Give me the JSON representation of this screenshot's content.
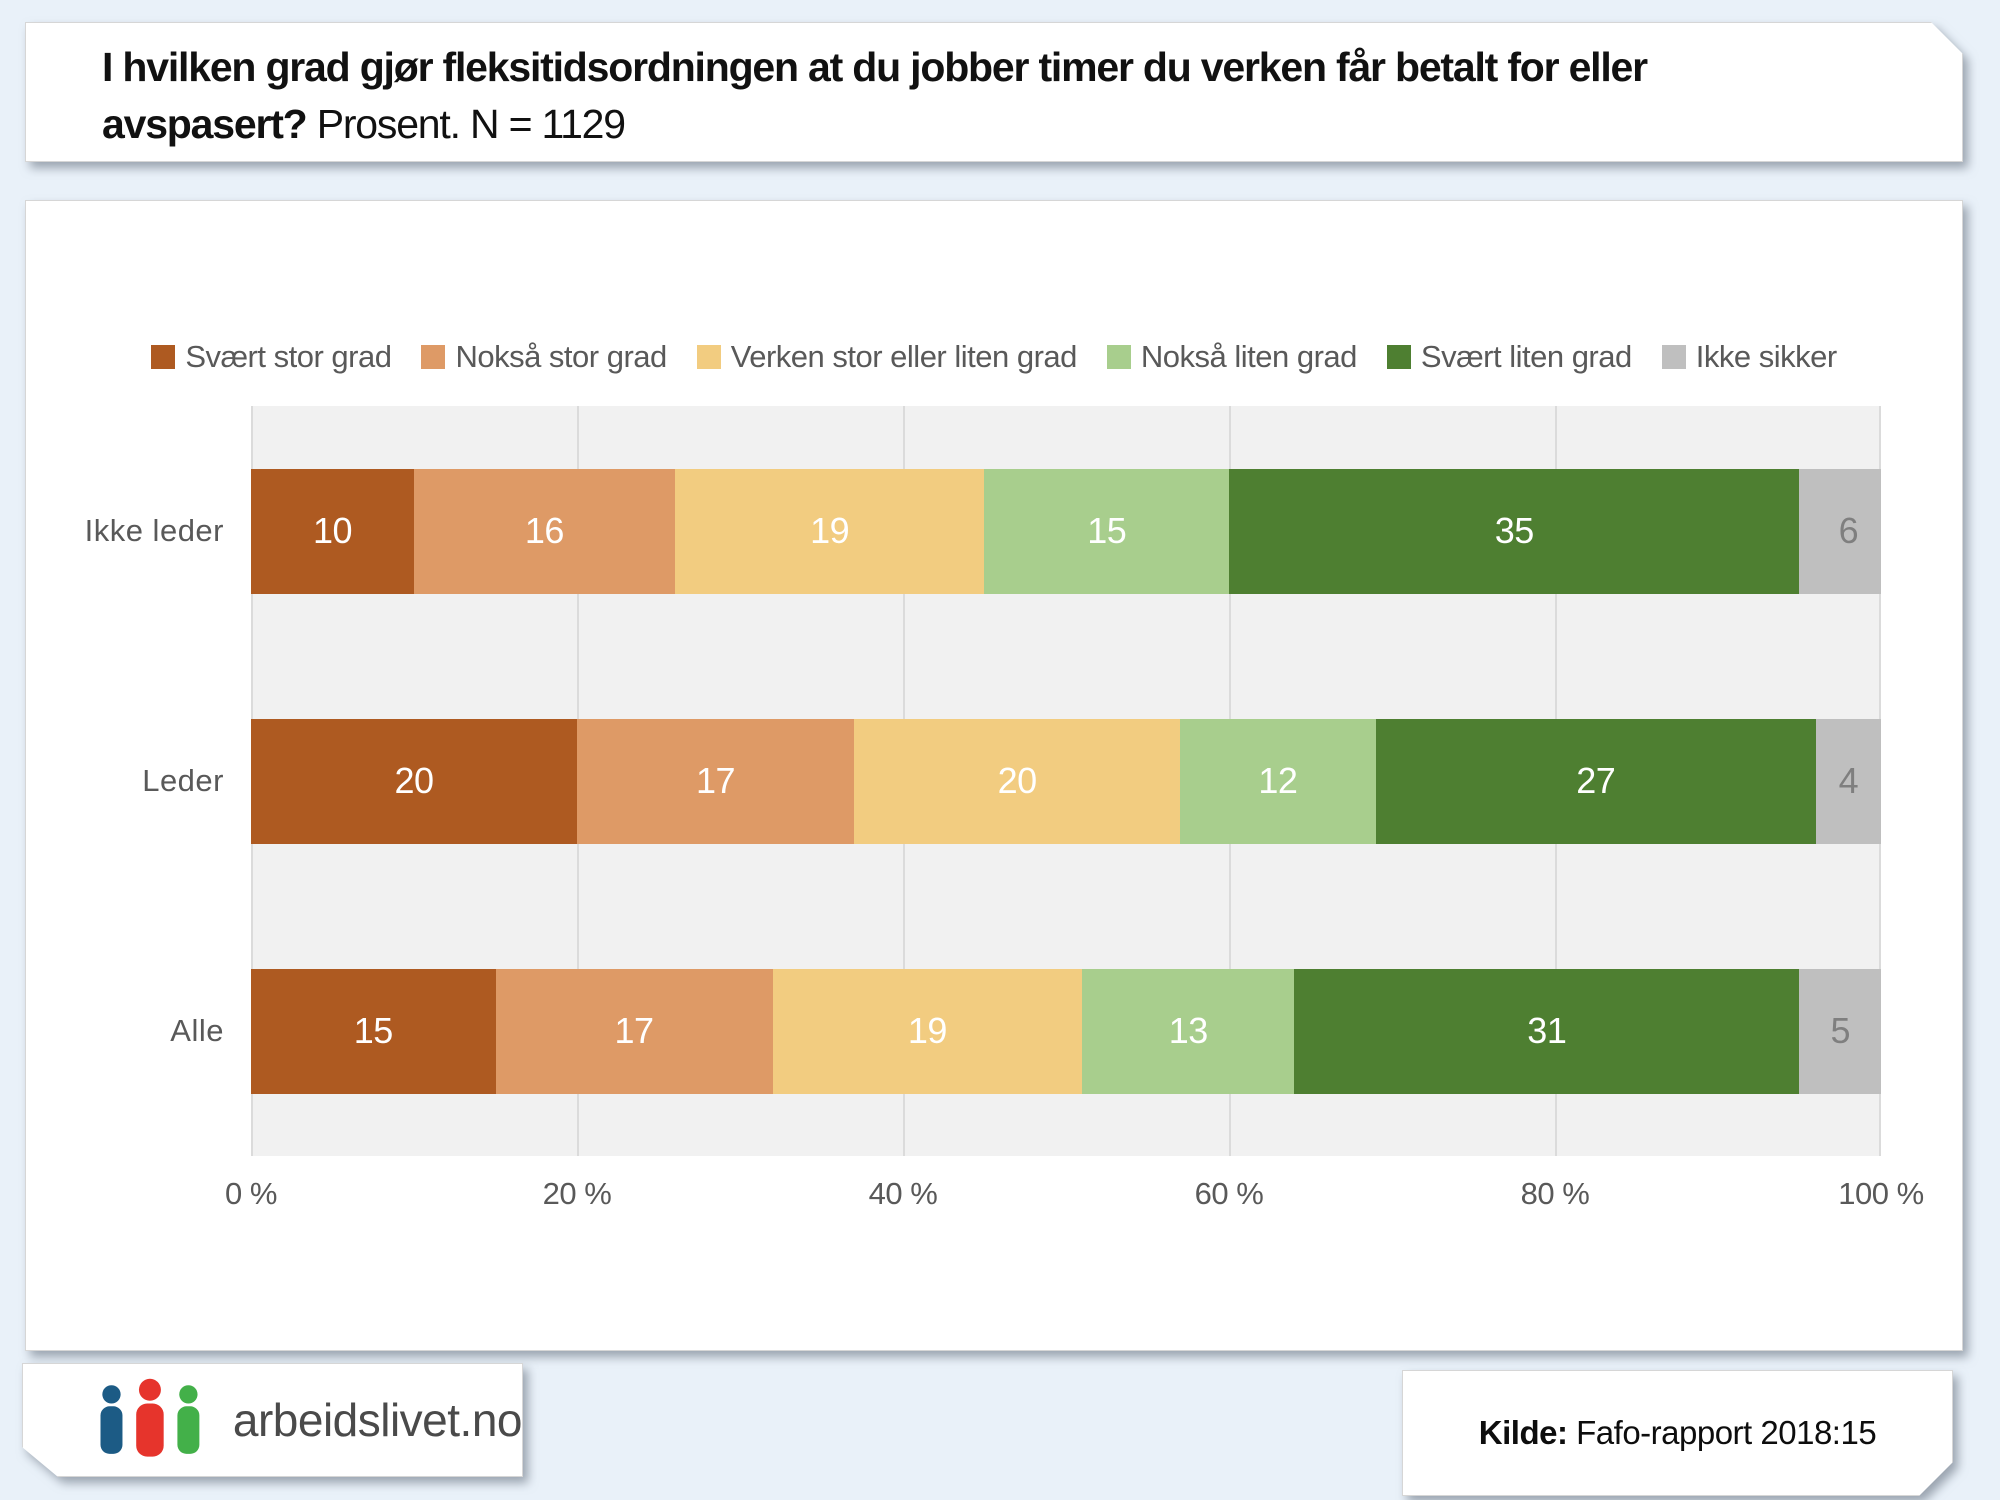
{
  "page": {
    "background": "#E9F1F9"
  },
  "header": {
    "title_bold_line1": "I hvilken grad gjør fleksitidsordningen at du jobber timer du verken får betalt for eller",
    "title_bold_line2": "avspasert?",
    "title_regular": " Prosent. N = 1129"
  },
  "chart_data": {
    "type": "bar",
    "stacked": true,
    "orientation": "horizontal",
    "title": "I hvilken grad gjør fleksitidsordningen at du jobber timer du verken får betalt for eller avspasert? Prosent. N = 1129",
    "categories": [
      "Ikke leder",
      "Leder",
      "Alle"
    ],
    "series": [
      {
        "name": "Svært stor grad",
        "color": "#AE5A21",
        "label_color": "#FFFFFF",
        "values": [
          10,
          20,
          15
        ]
      },
      {
        "name": "Nokså stor grad",
        "color": "#DE9A66",
        "label_color": "#FFFFFF",
        "values": [
          16,
          17,
          17
        ]
      },
      {
        "name": "Verken stor eller liten grad",
        "color": "#F2CC80",
        "label_color": "#FFFFFF",
        "values": [
          19,
          20,
          19
        ]
      },
      {
        "name": "Nokså liten grad",
        "color": "#A8CE8D",
        "label_color": "#FFFFFF",
        "values": [
          15,
          12,
          13
        ]
      },
      {
        "name": "Svært liten grad",
        "color": "#4E7F31",
        "label_color": "#FFFFFF",
        "values": [
          35,
          27,
          31
        ]
      },
      {
        "name": "Ikke sikker",
        "color": "#BFBFBF",
        "label_color": "#7F7F7F",
        "values": [
          6,
          4,
          5
        ]
      }
    ],
    "x_axis": {
      "tick_labels": [
        "0 %",
        "20 %",
        "40 %",
        "60 %",
        "80 %",
        "100 %"
      ],
      "min": 0,
      "max": 100,
      "grid": true
    },
    "legend_position": "top",
    "plot_background": "#F1F1F1",
    "gridline_color": "#DBDBDB",
    "text_color": "#595959"
  },
  "footer": {
    "logo_text": "arbeidslivet.no",
    "source_label": "Kilde:",
    "source_text": " Fafo-rapport 2018:15",
    "logo_colors": {
      "blue": "#1C5B85",
      "red": "#E6342C",
      "green": "#43B049"
    }
  }
}
